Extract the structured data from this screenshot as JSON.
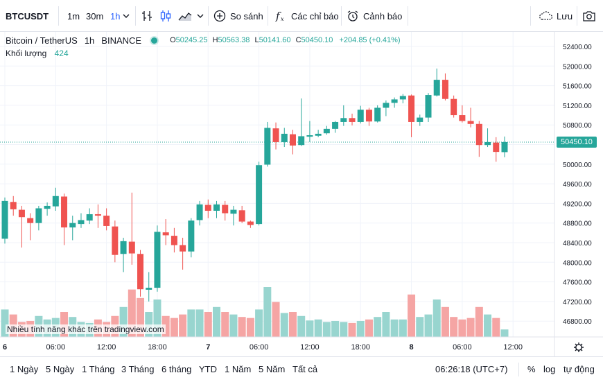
{
  "toolbar": {
    "symbol": "BTCUSDT",
    "intervals": [
      "1m",
      "30m",
      "1h"
    ],
    "active_interval": "1h",
    "compare_label": "So sánh",
    "indicators_label": "Các chỉ báo",
    "alerts_label": "Cảnh báo",
    "save_label": "Lưu"
  },
  "legend": {
    "name": "Bitcoin / TetherUS",
    "interval": "1h",
    "exchange": "BINANCE",
    "open": "50245.25",
    "high": "50563.38",
    "low": "50141.60",
    "close": "50450.10",
    "change": "+204.85 (+0.41%)",
    "volume_label": "Khối lượng",
    "volume_value": "424"
  },
  "watermark": "Nhiều tính năng khác trên tradingview.com",
  "last_price_label": "50450.10",
  "bottombar": {
    "ranges": [
      "1 Ngày",
      "5 Ngày",
      "1 Tháng",
      "3 Tháng",
      "6 tháng",
      "YTD",
      "1 Năm",
      "5 Năm",
      "Tất cả"
    ],
    "time": "06:26:18 (UTC+7)",
    "percent_label": "%",
    "log_label": "log",
    "auto_label": "tự động"
  },
  "colors": {
    "up": "#26a69a",
    "down": "#ef5350",
    "up_volume": "#98d5cf",
    "down_volume": "#f5a5a4",
    "accent": "#2962ff"
  },
  "chart_data": {
    "type": "candlestick",
    "y_ticks": [
      "52400.00",
      "52000.00",
      "51600.00",
      "51200.00",
      "50800.00",
      "50400.00",
      "50000.00",
      "49600.00",
      "49200.00",
      "48800.00",
      "48400.00",
      "48000.00",
      "47600.00",
      "47200.00",
      "46800.00"
    ],
    "y_tick_values": [
      52400,
      52000,
      51600,
      51200,
      50800,
      50400,
      50000,
      49600,
      49200,
      48800,
      48400,
      48000,
      47600,
      47200,
      46800
    ],
    "x_ticks": [
      {
        "label": "6",
        "index": 0,
        "day": true
      },
      {
        "label": "06:00",
        "index": 6,
        "day": false
      },
      {
        "label": "12:00",
        "index": 12,
        "day": false
      },
      {
        "label": "18:00",
        "index": 18,
        "day": false
      },
      {
        "label": "7",
        "index": 24,
        "day": true
      },
      {
        "label": "06:00",
        "index": 30,
        "day": false
      },
      {
        "label": "12:00",
        "index": 36,
        "day": false
      },
      {
        "label": "18:00",
        "index": 42,
        "day": false
      },
      {
        "label": "8",
        "index": 48,
        "day": true
      },
      {
        "label": "06:00",
        "index": 54,
        "day": false
      },
      {
        "label": "12:00",
        "index": 60,
        "day": false
      }
    ],
    "last_price": 50450.1,
    "candles": [
      {
        "o": 48480,
        "h": 49320,
        "l": 48380,
        "c": 49250,
        "v": 0.55
      },
      {
        "o": 49230,
        "h": 49350,
        "l": 48950,
        "c": 49080,
        "v": 0.45
      },
      {
        "o": 49070,
        "h": 49150,
        "l": 48300,
        "c": 48920,
        "v": 0.3
      },
      {
        "o": 48900,
        "h": 49000,
        "l": 48450,
        "c": 48800,
        "v": 0.32
      },
      {
        "o": 48800,
        "h": 49150,
        "l": 48650,
        "c": 49100,
        "v": 0.42
      },
      {
        "o": 49090,
        "h": 49220,
        "l": 48950,
        "c": 49150,
        "v": 0.35
      },
      {
        "o": 49140,
        "h": 49520,
        "l": 49050,
        "c": 49350,
        "v": 0.38
      },
      {
        "o": 49340,
        "h": 49400,
        "l": 48350,
        "c": 48710,
        "v": 0.5
      },
      {
        "o": 48710,
        "h": 48950,
        "l": 48450,
        "c": 48800,
        "v": 0.4
      },
      {
        "o": 48780,
        "h": 49000,
        "l": 48700,
        "c": 48860,
        "v": 0.3
      },
      {
        "o": 48850,
        "h": 49100,
        "l": 48780,
        "c": 48980,
        "v": 0.28
      },
      {
        "o": 48980,
        "h": 49180,
        "l": 48700,
        "c": 48950,
        "v": 0.35
      },
      {
        "o": 48950,
        "h": 49100,
        "l": 48650,
        "c": 48740,
        "v": 0.3
      },
      {
        "o": 48730,
        "h": 48850,
        "l": 48000,
        "c": 48150,
        "v": 0.42
      },
      {
        "o": 48170,
        "h": 48500,
        "l": 47800,
        "c": 48430,
        "v": 0.6
      },
      {
        "o": 48420,
        "h": 49420,
        "l": 47950,
        "c": 48180,
        "v": 0.95
      },
      {
        "o": 48170,
        "h": 48250,
        "l": 47300,
        "c": 47450,
        "v": 0.78
      },
      {
        "o": 47440,
        "h": 47800,
        "l": 47200,
        "c": 47480,
        "v": 0.5
      },
      {
        "o": 47480,
        "h": 48750,
        "l": 47400,
        "c": 48620,
        "v": 0.75
      },
      {
        "o": 48610,
        "h": 48880,
        "l": 48350,
        "c": 48550,
        "v": 0.42
      },
      {
        "o": 48540,
        "h": 48700,
        "l": 48200,
        "c": 48350,
        "v": 0.38
      },
      {
        "o": 48350,
        "h": 48500,
        "l": 47850,
        "c": 48220,
        "v": 0.45
      },
      {
        "o": 48220,
        "h": 48900,
        "l": 48100,
        "c": 48850,
        "v": 0.55
      },
      {
        "o": 48860,
        "h": 49250,
        "l": 48750,
        "c": 49180,
        "v": 0.55
      },
      {
        "o": 49170,
        "h": 49280,
        "l": 48900,
        "c": 49050,
        "v": 0.5
      },
      {
        "o": 49050,
        "h": 49250,
        "l": 48900,
        "c": 49180,
        "v": 0.6
      },
      {
        "o": 49170,
        "h": 49250,
        "l": 48850,
        "c": 49000,
        "v": 0.5
      },
      {
        "o": 48990,
        "h": 49150,
        "l": 48750,
        "c": 49070,
        "v": 0.45
      },
      {
        "o": 49060,
        "h": 49150,
        "l": 48800,
        "c": 48830,
        "v": 0.4
      },
      {
        "o": 48830,
        "h": 48850,
        "l": 48700,
        "c": 48760,
        "v": 0.38
      },
      {
        "o": 48780,
        "h": 50050,
        "l": 48750,
        "c": 49980,
        "v": 0.55
      },
      {
        "o": 49990,
        "h": 50860,
        "l": 49950,
        "c": 50740,
        "v": 1.0
      },
      {
        "o": 50730,
        "h": 50850,
        "l": 50300,
        "c": 50450,
        "v": 0.7
      },
      {
        "o": 50450,
        "h": 50740,
        "l": 50350,
        "c": 50620,
        "v": 0.48
      },
      {
        "o": 50610,
        "h": 50700,
        "l": 50200,
        "c": 50380,
        "v": 0.5
      },
      {
        "o": 50390,
        "h": 51340,
        "l": 50370,
        "c": 50570,
        "v": 0.42
      },
      {
        "o": 50560,
        "h": 50880,
        "l": 50450,
        "c": 50590,
        "v": 0.33
      },
      {
        "o": 50580,
        "h": 50700,
        "l": 50550,
        "c": 50620,
        "v": 0.35
      },
      {
        "o": 50630,
        "h": 50780,
        "l": 50600,
        "c": 50720,
        "v": 0.3
      },
      {
        "o": 50720,
        "h": 50880,
        "l": 50640,
        "c": 50860,
        "v": 0.32
      },
      {
        "o": 50860,
        "h": 51200,
        "l": 50780,
        "c": 50940,
        "v": 0.3
      },
      {
        "o": 50940,
        "h": 51030,
        "l": 50790,
        "c": 50860,
        "v": 0.28
      },
      {
        "o": 50860,
        "h": 51190,
        "l": 50830,
        "c": 51110,
        "v": 0.32
      },
      {
        "o": 51110,
        "h": 51150,
        "l": 50780,
        "c": 50870,
        "v": 0.35
      },
      {
        "o": 50870,
        "h": 51200,
        "l": 50850,
        "c": 51150,
        "v": 0.4
      },
      {
        "o": 51150,
        "h": 51300,
        "l": 50980,
        "c": 51250,
        "v": 0.5
      },
      {
        "o": 51250,
        "h": 51360,
        "l": 51150,
        "c": 51320,
        "v": 0.35
      },
      {
        "o": 51320,
        "h": 51430,
        "l": 51240,
        "c": 51390,
        "v": 0.35
      },
      {
        "o": 51400,
        "h": 51420,
        "l": 50550,
        "c": 50860,
        "v": 0.85
      },
      {
        "o": 50860,
        "h": 51010,
        "l": 50780,
        "c": 50950,
        "v": 0.4
      },
      {
        "o": 50950,
        "h": 51450,
        "l": 50860,
        "c": 51410,
        "v": 0.45
      },
      {
        "o": 51400,
        "h": 51950,
        "l": 51380,
        "c": 51720,
        "v": 0.75
      },
      {
        "o": 51720,
        "h": 51850,
        "l": 51300,
        "c": 51330,
        "v": 0.6
      },
      {
        "o": 51330,
        "h": 51400,
        "l": 50950,
        "c": 51000,
        "v": 0.4
      },
      {
        "o": 51000,
        "h": 51200,
        "l": 50850,
        "c": 50880,
        "v": 0.35
      },
      {
        "o": 50880,
        "h": 51150,
        "l": 50750,
        "c": 50820,
        "v": 0.38
      },
      {
        "o": 50820,
        "h": 50880,
        "l": 50150,
        "c": 50390,
        "v": 0.6
      },
      {
        "o": 50390,
        "h": 50730,
        "l": 50350,
        "c": 50450,
        "v": 0.45
      },
      {
        "o": 50440,
        "h": 50550,
        "l": 50050,
        "c": 50250,
        "v": 0.38
      },
      {
        "o": 50245.25,
        "h": 50563.38,
        "l": 50141.6,
        "c": 50450.1,
        "v": 0.15
      }
    ]
  }
}
